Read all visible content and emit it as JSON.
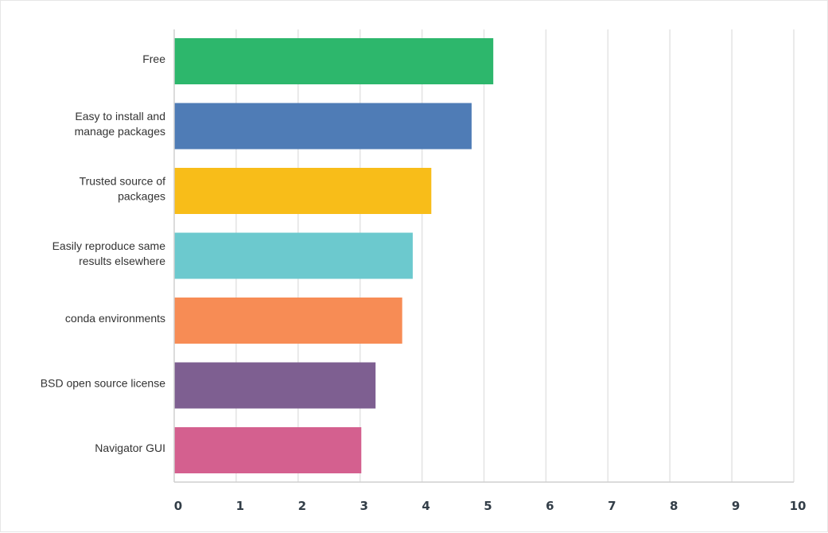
{
  "chart_data": {
    "type": "bar",
    "orientation": "horizontal",
    "categories": [
      [
        "Free"
      ],
      [
        "Easy to install and",
        "manage packages"
      ],
      [
        "Trusted source of",
        "packages"
      ],
      [
        "Easily reproduce same",
        "results elsewhere"
      ],
      [
        "conda environments"
      ],
      [
        "BSD open source license"
      ],
      [
        "Navigator GUI"
      ]
    ],
    "values": [
      5.15,
      4.8,
      4.15,
      3.85,
      3.68,
      3.25,
      3.02
    ],
    "colors": [
      "#2db76c",
      "#4f7cb6",
      "#f8bd19",
      "#6cc9ce",
      "#f78c55",
      "#7e5f91",
      "#d4608f"
    ],
    "xlim": [
      0,
      10
    ],
    "xticks": [
      "0",
      "1",
      "2",
      "3",
      "4",
      "5",
      "6",
      "7",
      "8",
      "9",
      "10"
    ],
    "grid": true,
    "xlabel": "",
    "ylabel": ""
  }
}
